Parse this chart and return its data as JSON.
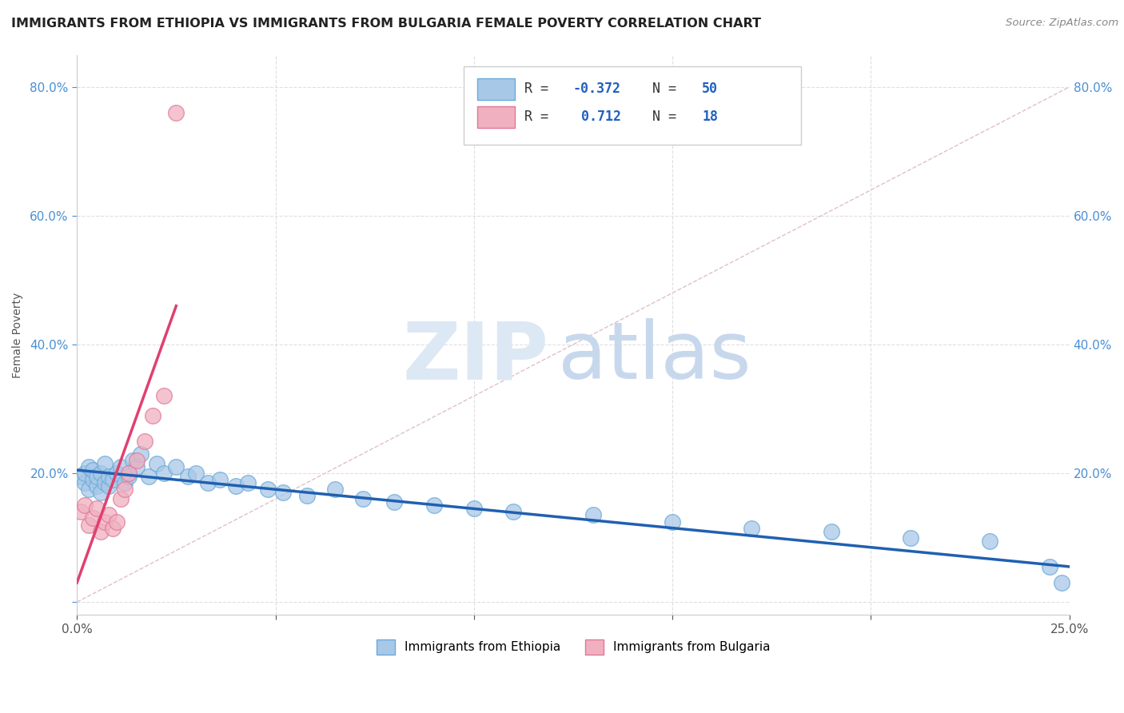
{
  "title": "IMMIGRANTS FROM ETHIOPIA VS IMMIGRANTS FROM BULGARIA FEMALE POVERTY CORRELATION CHART",
  "source": "Source: ZipAtlas.com",
  "ylabel": "Female Poverty",
  "xlim": [
    0.0,
    0.25
  ],
  "ylim": [
    -0.02,
    0.85
  ],
  "xticks": [
    0.0,
    0.05,
    0.1,
    0.15,
    0.2,
    0.25
  ],
  "yticks": [
    0.0,
    0.2,
    0.4,
    0.6,
    0.8
  ],
  "ethiopia_color": "#a8c8e8",
  "ethiopia_edge": "#6aaad8",
  "bulgaria_color": "#f0b0c0",
  "bulgaria_edge": "#e07898",
  "trend_ethiopia_color": "#2060b0",
  "trend_bulgaria_color": "#e04070",
  "ref_line_color": "#d8b0b8",
  "watermark_zip_color": "#dce8f4",
  "watermark_atlas_color": "#c8d8ec",
  "background_color": "#ffffff",
  "grid_color": "#d8d8d8",
  "ethiopia_x": [
    0.001,
    0.002,
    0.002,
    0.003,
    0.003,
    0.004,
    0.004,
    0.005,
    0.005,
    0.006,
    0.006,
    0.007,
    0.007,
    0.008,
    0.008,
    0.009,
    0.01,
    0.011,
    0.012,
    0.013,
    0.014,
    0.015,
    0.016,
    0.018,
    0.02,
    0.022,
    0.025,
    0.028,
    0.03,
    0.033,
    0.036,
    0.04,
    0.043,
    0.048,
    0.052,
    0.058,
    0.065,
    0.072,
    0.08,
    0.09,
    0.1,
    0.11,
    0.13,
    0.15,
    0.17,
    0.19,
    0.21,
    0.23,
    0.245,
    0.248
  ],
  "ethiopia_y": [
    0.195,
    0.185,
    0.2,
    0.175,
    0.21,
    0.19,
    0.205,
    0.18,
    0.195,
    0.17,
    0.2,
    0.185,
    0.215,
    0.18,
    0.195,
    0.19,
    0.2,
    0.21,
    0.185,
    0.195,
    0.22,
    0.21,
    0.23,
    0.195,
    0.215,
    0.2,
    0.21,
    0.195,
    0.2,
    0.185,
    0.19,
    0.18,
    0.185,
    0.175,
    0.17,
    0.165,
    0.175,
    0.16,
    0.155,
    0.15,
    0.145,
    0.14,
    0.135,
    0.125,
    0.115,
    0.11,
    0.1,
    0.095,
    0.055,
    0.03
  ],
  "bulgaria_x": [
    0.001,
    0.002,
    0.003,
    0.004,
    0.005,
    0.006,
    0.007,
    0.008,
    0.009,
    0.01,
    0.011,
    0.012,
    0.013,
    0.015,
    0.017,
    0.019,
    0.022,
    0.025
  ],
  "bulgaria_y": [
    0.14,
    0.15,
    0.12,
    0.13,
    0.145,
    0.11,
    0.125,
    0.135,
    0.115,
    0.125,
    0.16,
    0.175,
    0.2,
    0.22,
    0.25,
    0.29,
    0.32,
    0.76
  ],
  "eth_trend_x0": 0.0,
  "eth_trend_x1": 0.25,
  "eth_trend_y0": 0.205,
  "eth_trend_y1": 0.055,
  "bul_trend_x0": 0.0,
  "bul_trend_x1": 0.025,
  "bul_trend_y0": 0.03,
  "bul_trend_y1": 0.46
}
